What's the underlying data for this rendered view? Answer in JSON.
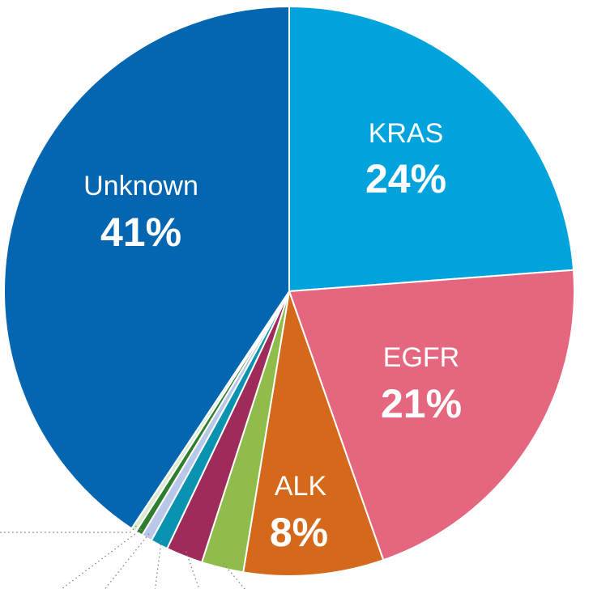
{
  "chart_data": {
    "type": "pie",
    "slices": [
      {
        "label": "KRAS",
        "value_label": "24%",
        "value": 24,
        "color": "#00a3dc",
        "show_label": true
      },
      {
        "label": "EGFR",
        "value_label": "21%",
        "value": 21,
        "color": "#e5677f",
        "show_label": true
      },
      {
        "label": "ALK",
        "value_label": "8%",
        "value": 8,
        "color": "#d4691b",
        "show_label": true
      },
      {
        "label": "",
        "value_label": "",
        "value": 2.4,
        "color": "#8fbc4a",
        "show_label": false
      },
      {
        "label": "",
        "value_label": "",
        "value": 2.1,
        "color": "#9e2b5a",
        "show_label": false
      },
      {
        "label": "",
        "value_label": "",
        "value": 1.0,
        "color": "#0a93b0",
        "show_label": false
      },
      {
        "label": "",
        "value_label": "",
        "value": 0.6,
        "color": "#b9c7e8",
        "show_label": false
      },
      {
        "label": "",
        "value_label": "",
        "value": 0.4,
        "color": "#2f7d2f",
        "show_label": false
      },
      {
        "label": "",
        "value_label": "",
        "value": 0.3,
        "color": "#d9ead0",
        "show_label": false
      },
      {
        "label": "Unknown",
        "value_label": "41%",
        "value": 41,
        "color": "#0466b0",
        "show_label": true
      }
    ],
    "start_angle_deg": 0,
    "direction": "clockwise",
    "legend": "none",
    "title": ""
  }
}
